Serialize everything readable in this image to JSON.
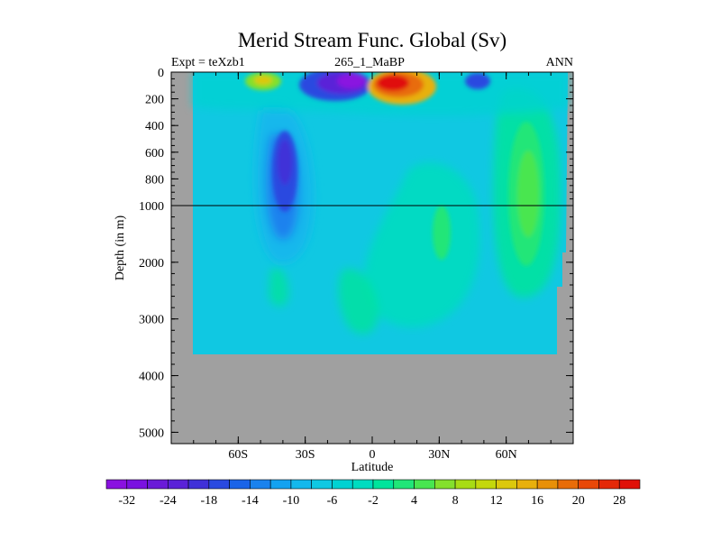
{
  "chart_data": {
    "type": "heatmap",
    "title": "Merid Stream Func. Global (Sv)",
    "subtitle_left": "Expt = teXzb1",
    "subtitle_center": "265_1_MaBP",
    "subtitle_right": "ANN",
    "xlabel": "Latitude",
    "ylabel": "Depth (in m)",
    "x_ticks": [
      "60S",
      "30S",
      "0",
      "30N",
      "60N"
    ],
    "x_tick_values": [
      -60,
      -30,
      0,
      30,
      60
    ],
    "xlim": [
      -90,
      90
    ],
    "y_ticks_upper": [
      "0",
      "200",
      "400",
      "600",
      "800",
      "1000"
    ],
    "y_ticks_lower": [
      "2000",
      "3000",
      "4000",
      "5000"
    ],
    "y_tick_values_upper": [
      0,
      200,
      400,
      600,
      800,
      1000
    ],
    "y_tick_values_lower": [
      2000,
      3000,
      4000,
      5000
    ],
    "ylim": [
      0,
      5200
    ],
    "y_scale_break": 1000,
    "colorbar_labels": [
      "-32",
      "-24",
      "-18",
      "-14",
      "-10",
      "-6",
      "-2",
      "4",
      "8",
      "12",
      "16",
      "20",
      "28"
    ],
    "colorbar_label_slots": [
      0,
      2,
      4,
      6,
      8,
      10,
      12,
      14,
      16,
      18,
      20,
      22,
      24
    ],
    "colorbar_colors": [
      "#8a12e0",
      "#7a12e0",
      "#6a1ad8",
      "#5a22d8",
      "#4030d8",
      "#2a4ae0",
      "#1a64e8",
      "#1a82ee",
      "#14a2f0",
      "#14b8ec",
      "#10c8e2",
      "#00d2d2",
      "#00dcc0",
      "#00e49c",
      "#20e678",
      "#48e650",
      "#84e02c",
      "#a8dc14",
      "#c4d80c",
      "#dcc80c",
      "#e8b00c",
      "#e89008",
      "#e86c08",
      "#e84808",
      "#e42808",
      "#e01008"
    ],
    "features": [
      {
        "name": "southern-cell-deep",
        "lat": -33,
        "depth": 700,
        "value": -14
      },
      {
        "name": "subtropical-south-surface",
        "lat": -15,
        "depth": 80,
        "value": -30
      },
      {
        "name": "equatorial-north-surface",
        "lat": 8,
        "depth": 80,
        "value": 30
      },
      {
        "name": "north-subtropical-surface",
        "lat": 38,
        "depth": 60,
        "value": -14
      },
      {
        "name": "north-deep-cell",
        "lat": 68,
        "depth": 800,
        "value": 10
      },
      {
        "name": "southern-surface-positive",
        "lat": -46,
        "depth": 60,
        "value": 10
      }
    ],
    "ocean_floor_depth": 3700,
    "land_color": "#a0a0a0",
    "ocean_base_color": "#10c8e2"
  }
}
